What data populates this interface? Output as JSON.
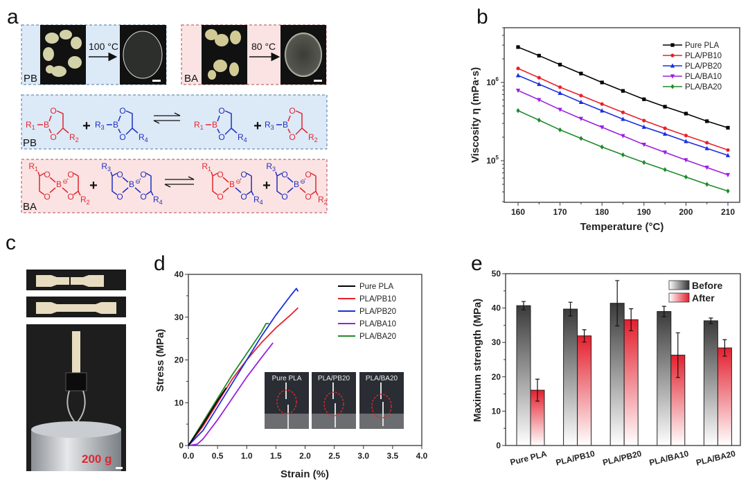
{
  "panel_labels": {
    "a": "a",
    "b": "b",
    "c": "c",
    "d": "d",
    "e": "e"
  },
  "panel_a": {
    "photo_pb_label": "PB",
    "photo_ba_label": "BA",
    "pb_temperature": "100 °C",
    "ba_temperature": "80 °C",
    "scheme_pb_label": "PB",
    "scheme_ba_label": "BA",
    "plus": "+",
    "atoms": {
      "boron": "B",
      "oxygen": "O",
      "anion": "⊖"
    },
    "substituents": {
      "R1": {
        "base": "R",
        "sub": "1"
      },
      "R2": {
        "base": "R",
        "sub": "2"
      },
      "R3": {
        "base": "R",
        "sub": "3"
      },
      "R4": {
        "base": "R",
        "sub": "4"
      }
    },
    "colors": {
      "red": "#e0262f",
      "blue": "#1f2fc0",
      "pb_bg": "#dce9f7",
      "ba_bg": "#fbe3e3",
      "pb_border": "#4a78a8",
      "ba_border": "#b04a50"
    }
  },
  "panel_c": {
    "weight_label": "200 g"
  },
  "chart_data": [
    {
      "panel": "b",
      "type": "line",
      "xlabel": "Temperature (°C)",
      "ylabel": "Viscosity η (mPa·s)",
      "yscale": "log",
      "xlim": [
        158,
        212
      ],
      "ylim": [
        30000,
        5000000
      ],
      "xticks": [
        160,
        170,
        180,
        190,
        200,
        210
      ],
      "yticks": [
        {
          "base": "10",
          "exp": "5",
          "value": 100000
        },
        {
          "base": "10",
          "exp": "6",
          "value": 1000000
        }
      ],
      "legend_position": "top-right",
      "x": [
        160,
        165,
        170,
        175,
        180,
        185,
        190,
        195,
        200,
        205,
        210
      ],
      "series": [
        {
          "name": "Pure PLA",
          "color": "#000000",
          "marker": "square",
          "values": [
            2830000,
            2200000,
            1690000,
            1300000,
            1000000,
            780000,
            610000,
            490000,
            400000,
            320000,
            264000
          ]
        },
        {
          "name": "PLA/PB10",
          "color": "#e8202a",
          "marker": "circle",
          "values": [
            1510000,
            1150000,
            870000,
            680000,
            530000,
            415000,
            326000,
            260000,
            210000,
            170000,
            137000
          ]
        },
        {
          "name": "PLA/PB20",
          "color": "#1a2ee0",
          "marker": "triangle-up",
          "values": [
            1230000,
            950000,
            730000,
            560000,
            436000,
            340000,
            270000,
            220000,
            177000,
            144000,
            117000
          ]
        },
        {
          "name": "PLA/BA10",
          "color": "#9a1fe0",
          "marker": "triangle-down",
          "values": [
            790000,
            600000,
            450000,
            345000,
            268000,
            208000,
            161000,
            128000,
            102000,
            82000,
            66000
          ]
        },
        {
          "name": "PLA/BA20",
          "color": "#1f8a2a",
          "marker": "diamond",
          "values": [
            437000,
            330000,
            248000,
            193000,
            150000,
            119000,
            95000,
            77000,
            62000,
            50000,
            41000
          ]
        }
      ]
    },
    {
      "panel": "d",
      "type": "line",
      "xlabel": "Strain (%)",
      "ylabel": "Stress (MPa)",
      "xlim": [
        0,
        4.0
      ],
      "ylim": [
        0,
        40
      ],
      "xticks": [
        "0.0",
        "0.5",
        "1.0",
        "1.5",
        "2.0",
        "2.5",
        "3.0",
        "3.5",
        "4.0"
      ],
      "yticks": [
        "0",
        "10",
        "20",
        "30",
        "40"
      ],
      "legend_position": "top-right",
      "series": [
        {
          "name": "Pure PLA",
          "color": "#000000",
          "x": [
            0,
            0.25,
            0.5,
            0.65
          ],
          "values": [
            0,
            5,
            10.5,
            13.5
          ]
        },
        {
          "name": "PLA/PB10",
          "color": "#e8202a",
          "x": [
            0,
            0.25,
            0.5,
            0.75,
            1.0,
            1.25,
            1.5,
            1.75,
            1.88
          ],
          "values": [
            0,
            4.5,
            10,
            15.5,
            20,
            24,
            27.5,
            30.5,
            32.2
          ]
        },
        {
          "name": "PLA/PB20",
          "color": "#1a2ee0",
          "x": [
            0,
            0.25,
            0.5,
            0.75,
            1.0,
            1.25,
            1.5,
            1.75,
            1.85,
            1.88
          ],
          "values": [
            0,
            3.5,
            9,
            14.5,
            20,
            25.5,
            30.5,
            35,
            36.7,
            36
          ]
        },
        {
          "name": "PLA/BA10",
          "color": "#9a1fe0",
          "x": [
            0,
            0.15,
            0.25,
            0.5,
            0.75,
            1.0,
            1.25,
            1.45
          ],
          "values": [
            0,
            0.3,
            1.5,
            6,
            11,
            16,
            20.5,
            24
          ]
        },
        {
          "name": "PLA/BA20",
          "color": "#1f8a2a",
          "x": [
            0,
            0.25,
            0.5,
            0.75,
            1.0,
            1.25,
            1.33,
            1.38
          ],
          "values": [
            0,
            5.5,
            11,
            16.5,
            21.5,
            26.5,
            28.5,
            28.5
          ]
        }
      ],
      "inset_labels": [
        "Pure PLA",
        "PLA/PB20",
        "PLA/BA20"
      ]
    },
    {
      "panel": "e",
      "type": "bar",
      "ylabel": "Maximum strength (MPa)",
      "ylim": [
        0,
        50
      ],
      "yticks": [
        "0",
        "10",
        "20",
        "30",
        "40",
        "50"
      ],
      "legend_position": "top-right",
      "categories": [
        "Pure PLA",
        "PLA/PB10",
        "PLA/PB20",
        "PLA/BA10",
        "PLA/BA20"
      ],
      "series": [
        {
          "name": "Before",
          "color": "#3a3a3a",
          "values": [
            40.7,
            39.7,
            41.4,
            39.0,
            36.3
          ],
          "errors": [
            1.2,
            2.0,
            6.6,
            1.5,
            0.8
          ]
        },
        {
          "name": "After",
          "color": "#e3202e",
          "values": [
            16.1,
            31.9,
            36.6,
            26.3,
            28.4
          ],
          "errors": [
            3.2,
            1.8,
            3.2,
            6.5,
            2.4
          ]
        }
      ]
    }
  ]
}
